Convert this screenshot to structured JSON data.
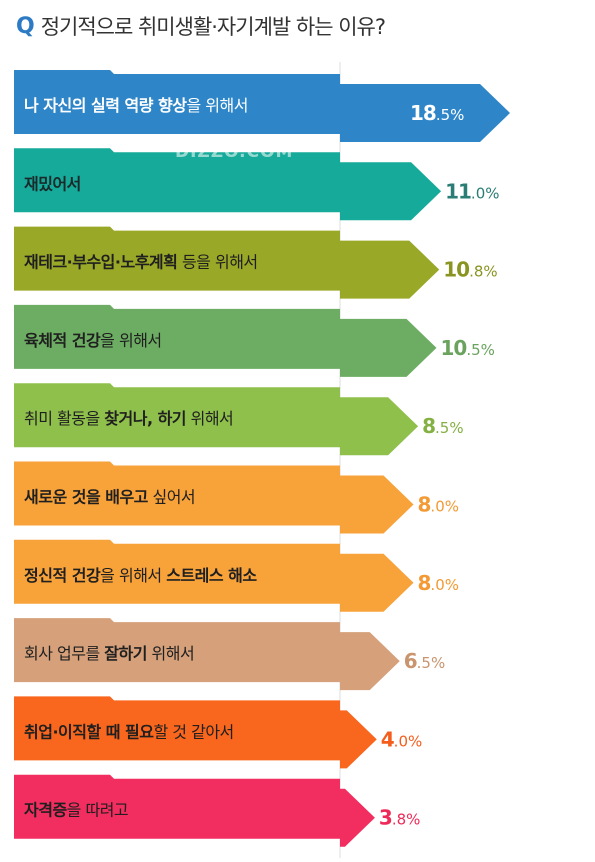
{
  "title": {
    "prefix": "Q",
    "text": "정기적으로 취미생활·자기계발 하는 이유?"
  },
  "watermark": "DIZZO.COM",
  "chart_data": {
    "type": "bar",
    "orientation": "horizontal",
    "title": "정기적으로 취미생활·자기계발 하는 이유?",
    "unit": "%",
    "categories": [
      "나 자신의 실력 역량 향상을 위해서",
      "재밌어서",
      "재테크·부수입·노후계획 등을 위해서",
      "육체적 건강을 위해서",
      "취미 활동을 찾거나, 하기 위해서",
      "새로운 것을 배우고 싶어서",
      "정신적 건강을 위해서 스트레스 해소",
      "회사 업무를 잘하기 위해서",
      "취업·이직할 때 필요할 것 같아서",
      "자격증을 따려고"
    ],
    "values": [
      18.5,
      11.0,
      10.8,
      10.5,
      8.5,
      8.0,
      8.0,
      6.5,
      4.0,
      3.8
    ],
    "value_labels": [
      "18.5%",
      "11.0%",
      "10.8%",
      "10.5%",
      "8.5%",
      "8.0%",
      "8.0%",
      "6.5%",
      "4.0%",
      "3.8%"
    ],
    "colors": [
      "#2e86c8",
      "#16aa9a",
      "#9aa828",
      "#6dad63",
      "#8fc04c",
      "#f8a23a",
      "#f8a23a",
      "#d5a07a",
      "#f9661d",
      "#f22d5f"
    ],
    "label_colors": [
      "#ffffff",
      "#2a7d74",
      "#8a9420",
      "#6aa35e",
      "#84b044",
      "#f39a34",
      "#f39a34",
      "#c9946e",
      "#f45d1b",
      "#ee2a58"
    ],
    "text_colors": [
      "#ffffff",
      "#1a2a2a",
      "#1f1f1f",
      "#1f1f1f",
      "#1f1f1f",
      "#1f1f1f",
      "#1f1f1f",
      "#1f1f1f",
      "#1f1f1f",
      "#1f1f1f"
    ],
    "bold_segments": [
      [
        {
          "t": "나 자신의 실력 역량 향상",
          "b": true
        },
        {
          "t": "을 위해서",
          "b": false
        }
      ],
      [
        {
          "t": "재밌어서",
          "b": true
        }
      ],
      [
        {
          "t": "재테크·부수입·노후계획",
          "b": true
        },
        {
          "t": " 등을 위해서",
          "b": false
        }
      ],
      [
        {
          "t": "육체적 건강",
          "b": true
        },
        {
          "t": "을 위해서",
          "b": false
        }
      ],
      [
        {
          "t": "취미 활동",
          "b": false
        },
        {
          "t": "을 ",
          "b": false
        },
        {
          "t": "찾거나, 하기",
          "b": true
        },
        {
          "t": " 위해서",
          "b": false
        }
      ],
      [
        {
          "t": "새로운 것을 배우고",
          "b": true
        },
        {
          "t": " 싶어서",
          "b": false
        }
      ],
      [
        {
          "t": "정신적 건강",
          "b": true
        },
        {
          "t": "을 위해서 ",
          "b": false
        },
        {
          "t": "스트레스 해소",
          "b": true
        }
      ],
      [
        {
          "t": "회사 업무",
          "b": false
        },
        {
          "t": "를 ",
          "b": false
        },
        {
          "t": "잘하기",
          "b": true
        },
        {
          "t": " 위해서",
          "b": false
        }
      ],
      [
        {
          "t": "취업·이직할 때 필요",
          "b": true
        },
        {
          "t": "할 것 같아서",
          "b": false
        }
      ],
      [
        {
          "t": "자격증",
          "b": true
        },
        {
          "t": "을 따려고",
          "b": false
        }
      ]
    ]
  }
}
